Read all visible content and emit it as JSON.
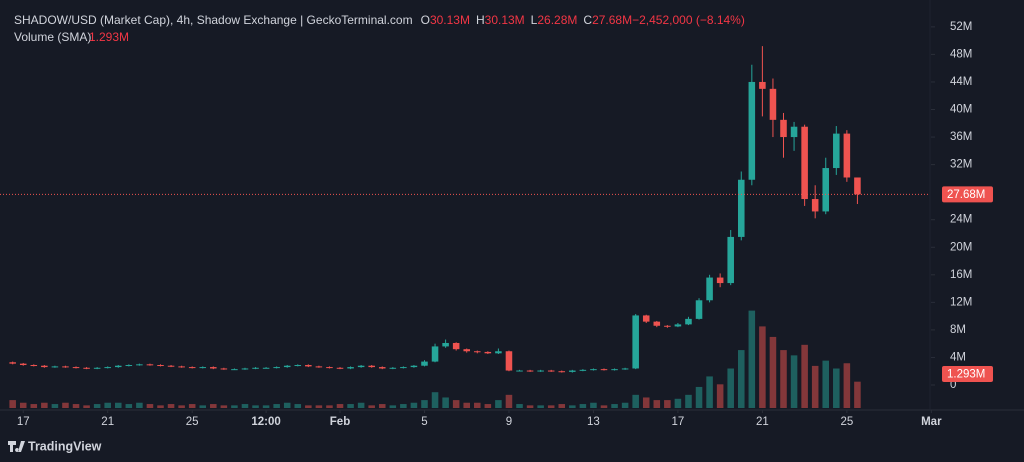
{
  "chart_data": {
    "type": "candlestick",
    "title": "SHADOW/USD (Market Cap), 4h, Shadow Exchange | GeckoTerminal.com",
    "legend_values": [
      {
        "key": "O",
        "text": "30.13M"
      },
      {
        "key": "H",
        "text": "30.13M"
      },
      {
        "key": "L",
        "text": "26.28M"
      },
      {
        "key": "C",
        "text": "27.68M"
      },
      {
        "text": "−2,452,000 (−8.14%)"
      }
    ],
    "up_color": "#26a69a",
    "down_color": "#ef5350",
    "grid": false,
    "xlim": [
      15.9,
      59.7
    ],
    "xticks": [
      {
        "value": 17,
        "label": "17"
      },
      {
        "value": 21,
        "label": "21"
      },
      {
        "value": 25,
        "label": "25"
      },
      {
        "value": 28.5,
        "label": "12:00"
      },
      {
        "value": 32,
        "label": "Feb"
      },
      {
        "value": 36,
        "label": "5"
      },
      {
        "value": 40,
        "label": "9"
      },
      {
        "value": 44,
        "label": "13"
      },
      {
        "value": 48,
        "label": "17"
      },
      {
        "value": 52,
        "label": "21"
      },
      {
        "value": 56,
        "label": "25"
      },
      {
        "value": 60,
        "label": "Mar"
      }
    ],
    "ylim": [
      -3.34,
      55.9
    ],
    "yticks": [
      0,
      {
        "value": 4,
        "label": "4M"
      },
      {
        "value": 8,
        "label": "8M"
      },
      {
        "value": 12,
        "label": "12M"
      },
      {
        "value": 16,
        "label": "16M"
      },
      {
        "value": 20,
        "label": "20M"
      },
      {
        "value": 24,
        "label": "24M"
      },
      {
        "value": 32,
        "label": "32M"
      },
      {
        "value": 36,
        "label": "36M"
      },
      {
        "value": 40,
        "label": "40M"
      },
      {
        "value": 44,
        "label": "44M"
      },
      {
        "value": 48,
        "label": "48M"
      },
      {
        "value": 52,
        "label": "52M"
      }
    ],
    "candles": {
      "x": [
        16.5,
        17,
        17.5,
        18,
        18.5,
        19,
        19.5,
        20,
        20.5,
        21,
        21.5,
        22,
        22.5,
        23,
        23.5,
        24,
        24.5,
        25,
        25.5,
        26,
        26.5,
        27,
        27.5,
        28,
        28.5,
        29,
        29.5,
        30,
        30.5,
        31,
        31.5,
        32,
        32.5,
        33,
        33.5,
        34,
        34.5,
        35,
        35.5,
        36,
        36.5,
        37,
        37.5,
        38,
        38.5,
        39,
        39.5,
        40,
        40.5,
        41,
        41.5,
        42,
        42.5,
        43,
        43.5,
        44,
        44.5,
        45,
        45.5,
        46,
        46.5,
        47,
        47.5,
        48,
        48.5,
        49,
        49.5,
        50,
        50.5,
        51,
        51.5,
        52,
        52.5,
        53,
        53.5,
        54,
        54.5,
        55,
        55.5,
        56,
        56.5
      ],
      "open": [
        3.3,
        3.1,
        2.9,
        2.8,
        2.6,
        2.7,
        2.6,
        2.5,
        2.4,
        2.5,
        2.6,
        2.8,
        2.9,
        3.0,
        2.9,
        2.8,
        2.7,
        2.6,
        2.5,
        2.6,
        2.4,
        2.3,
        2.3,
        2.4,
        2.5,
        2.5,
        2.6,
        2.8,
        2.9,
        2.7,
        2.6,
        2.5,
        2.4,
        2.6,
        2.8,
        2.6,
        2.4,
        2.5,
        2.6,
        2.8,
        3.4,
        5.6,
        6.1,
        5.2,
        4.9,
        4.8,
        4.6,
        4.9,
        2.1,
        2.1,
        2.0,
        2.1,
        2.0,
        1.9,
        2.1,
        2.2,
        2.3,
        2.2,
        2.3,
        2.4,
        10.1,
        9.2,
        8.6,
        8.5,
        8.8,
        9.6,
        12.3,
        15.6,
        14.8,
        21.5,
        29.8,
        44.0,
        43.0,
        38.5,
        36.0,
        37.5,
        27.0,
        25.2,
        31.5,
        36.5,
        30.13
      ],
      "high": [
        3.4,
        3.2,
        3.0,
        2.9,
        2.8,
        2.8,
        2.7,
        2.6,
        2.6,
        2.7,
        2.9,
        3.0,
        3.1,
        3.1,
        3.0,
        2.9,
        2.8,
        2.7,
        2.7,
        2.7,
        2.5,
        2.4,
        2.5,
        2.6,
        2.6,
        2.7,
        2.9,
        3.0,
        3.0,
        2.8,
        2.7,
        2.6,
        2.7,
        2.9,
        2.9,
        2.7,
        2.6,
        2.7,
        2.9,
        3.6,
        6.0,
        6.6,
        6.2,
        5.3,
        5.0,
        4.9,
        5.3,
        5.0,
        2.2,
        2.2,
        2.2,
        2.2,
        2.1,
        2.2,
        2.3,
        2.4,
        2.4,
        2.4,
        2.5,
        10.3,
        10.2,
        9.3,
        8.7,
        9.0,
        9.9,
        12.6,
        16.0,
        16.2,
        22.5,
        31.0,
        46.5,
        49.2,
        44.5,
        39.5,
        38.2,
        37.8,
        29.0,
        33.0,
        37.6,
        37.0,
        30.13
      ],
      "low": [
        3.0,
        2.8,
        2.7,
        2.5,
        2.5,
        2.5,
        2.4,
        2.3,
        2.3,
        2.4,
        2.5,
        2.7,
        2.8,
        2.8,
        2.7,
        2.6,
        2.5,
        2.4,
        2.4,
        2.3,
        2.2,
        2.2,
        2.2,
        2.3,
        2.4,
        2.4,
        2.5,
        2.7,
        2.6,
        2.5,
        2.4,
        2.3,
        2.3,
        2.5,
        2.5,
        2.3,
        2.3,
        2.4,
        2.5,
        2.7,
        3.3,
        5.4,
        5.0,
        4.7,
        4.6,
        4.5,
        4.5,
        2.0,
        2.0,
        1.9,
        1.9,
        1.9,
        1.8,
        1.8,
        2.0,
        2.1,
        2.1,
        2.1,
        2.2,
        2.3,
        9.0,
        8.4,
        8.3,
        8.4,
        8.7,
        9.5,
        12.0,
        14.2,
        14.5,
        21.0,
        29.0,
        39.0,
        36.0,
        33.0,
        34.0,
        26.0,
        24.2,
        24.8,
        30.5,
        29.5,
        26.28
      ],
      "close": [
        3.1,
        2.9,
        2.8,
        2.6,
        2.7,
        2.6,
        2.5,
        2.4,
        2.5,
        2.6,
        2.8,
        2.9,
        3.0,
        2.9,
        2.8,
        2.7,
        2.6,
        2.5,
        2.6,
        2.4,
        2.3,
        2.3,
        2.4,
        2.5,
        2.5,
        2.6,
        2.8,
        2.9,
        2.7,
        2.6,
        2.5,
        2.4,
        2.6,
        2.8,
        2.6,
        2.4,
        2.5,
        2.6,
        2.8,
        3.4,
        5.6,
        6.1,
        5.2,
        4.9,
        4.8,
        4.6,
        4.9,
        2.1,
        2.1,
        2.0,
        2.1,
        2.0,
        1.9,
        2.1,
        2.2,
        2.3,
        2.2,
        2.3,
        2.4,
        10.1,
        9.2,
        8.6,
        8.5,
        8.8,
        9.6,
        12.3,
        15.6,
        14.8,
        21.5,
        29.8,
        44.0,
        43.0,
        38.5,
        36.0,
        37.5,
        27.0,
        25.2,
        31.5,
        36.5,
        30.13,
        27.68
      ]
    },
    "volume": {
      "name": "Volume (SMA)",
      "sma": 1.293,
      "sma_label": "1.293M",
      "ylim": [
        0,
        15.5
      ],
      "values": [
        0.3,
        0.2,
        0.15,
        0.2,
        0.15,
        0.2,
        0.15,
        0.1,
        0.15,
        0.2,
        0.2,
        0.15,
        0.2,
        0.15,
        0.1,
        0.15,
        0.1,
        0.15,
        0.1,
        0.15,
        0.1,
        0.1,
        0.15,
        0.1,
        0.1,
        0.15,
        0.2,
        0.15,
        0.1,
        0.1,
        0.1,
        0.15,
        0.15,
        0.2,
        0.1,
        0.15,
        0.1,
        0.15,
        0.2,
        0.3,
        0.6,
        0.4,
        0.3,
        0.2,
        0.2,
        0.15,
        0.3,
        0.5,
        0.15,
        0.1,
        0.1,
        0.1,
        0.15,
        0.1,
        0.15,
        0.2,
        0.1,
        0.15,
        0.2,
        0.5,
        0.4,
        0.3,
        0.3,
        0.35,
        0.5,
        0.8,
        1.2,
        0.9,
        1.5,
        2.2,
        3.7,
        3.1,
        2.7,
        2.2,
        2.0,
        2.4,
        1.6,
        1.8,
        1.5,
        1.7,
        1.0
      ]
    },
    "last_price": {
      "value": 27.68,
      "label": "27.68M"
    },
    "branding": "TradingView"
  }
}
